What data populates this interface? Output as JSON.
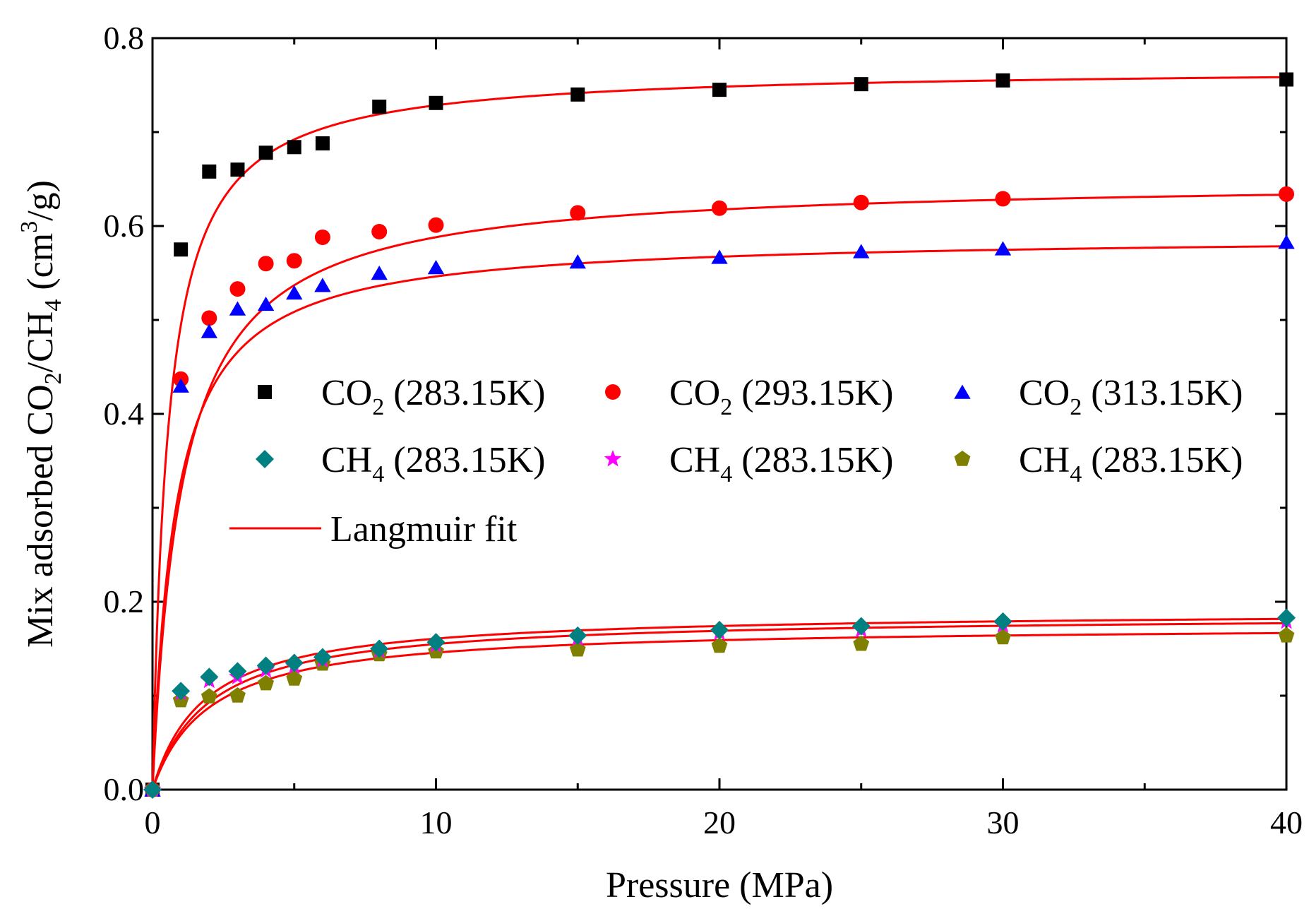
{
  "chart_data": {
    "type": "scatter",
    "title": "",
    "xlabel": "Pressure (MPa)",
    "ylabel": {
      "p1": "Mix adsorbed CO",
      "s1": "2",
      "p2": "/CH",
      "s2": "4",
      "p3": " (cm",
      "sup": "3",
      "p4": "/g)"
    },
    "xlim": [
      0,
      40
    ],
    "ylim": [
      0,
      0.8
    ],
    "x_ticks": [
      0,
      10,
      20,
      30,
      40
    ],
    "x_tick_labels": [
      "0",
      "10",
      "20",
      "30",
      "40"
    ],
    "y_ticks": [
      0.0,
      0.2,
      0.4,
      0.6,
      0.8
    ],
    "y_tick_labels": [
      "0.0",
      "0.2",
      "0.4",
      "0.6",
      "0.8"
    ],
    "x": [
      0,
      1,
      2,
      3,
      4,
      5,
      6,
      8,
      10,
      15,
      20,
      25,
      30,
      40
    ],
    "series": [
      {
        "name": "CO2 (283.15K)",
        "label": {
          "pre": "CO",
          "sub": "2",
          "post": " (283.15K)"
        },
        "marker": "square",
        "color": "#000000",
        "values": [
          0,
          0.575,
          0.658,
          0.66,
          0.678,
          0.684,
          0.688,
          0.727,
          0.731,
          0.74,
          0.745,
          0.751,
          0.755,
          0.756
        ]
      },
      {
        "name": "CO2 (293.15K)",
        "label": {
          "pre": "CO",
          "sub": "2",
          "post": " (293.15K)"
        },
        "marker": "circle",
        "color": "#ff0000",
        "values": [
          0,
          0.437,
          0.502,
          0.533,
          0.56,
          0.563,
          0.588,
          0.594,
          0.601,
          0.614,
          0.619,
          0.625,
          0.629,
          0.634
        ]
      },
      {
        "name": "CO2 (313.15K)",
        "label": {
          "pre": "CO",
          "sub": "2",
          "post": " (313.15K)"
        },
        "marker": "triangle",
        "color": "#0000ff",
        "values": [
          0,
          0.43,
          0.488,
          0.512,
          0.517,
          0.529,
          0.537,
          0.55,
          0.556,
          0.562,
          0.567,
          0.573,
          0.576,
          0.583
        ]
      },
      {
        "name": "CH4 (283.15K)",
        "label": {
          "pre": "CH",
          "sub": "4",
          "post": " (283.15K)"
        },
        "marker": "diamond",
        "color": "#008080",
        "values": [
          0,
          0.105,
          0.12,
          0.126,
          0.132,
          0.135,
          0.141,
          0.15,
          0.157,
          0.164,
          0.17,
          0.174,
          0.179,
          0.183
        ]
      },
      {
        "name": "CH4 (283.15K)",
        "label": {
          "pre": "CH",
          "sub": "4",
          "post": " (283.15K)"
        },
        "marker": "star",
        "color": "#ff00ff",
        "values": [
          0,
          0.103,
          0.116,
          0.12,
          0.127,
          0.131,
          0.138,
          0.148,
          0.154,
          0.161,
          0.167,
          0.17,
          0.175,
          0.179
        ]
      },
      {
        "name": "CH4 (283.15K)",
        "label": {
          "pre": "CH",
          "sub": "4",
          "post": " (283.15K)"
        },
        "marker": "pentagon",
        "color": "#808000",
        "values": [
          0,
          0.095,
          0.099,
          0.1,
          0.113,
          0.118,
          0.134,
          0.144,
          0.147,
          0.149,
          0.153,
          0.155,
          0.162,
          0.164
        ]
      }
    ],
    "fits": {
      "name": "Langmuir fit",
      "color": "#ff0000",
      "curves": [
        {
          "series": "CO2 (283.15K)",
          "qmax": 0.769,
          "b": 1.8
        },
        {
          "series": "CO2 (293.15K)",
          "qmax": 0.65,
          "b": 0.95
        },
        {
          "series": "CO2 (313.15K)",
          "qmax": 0.59,
          "b": 1.25
        },
        {
          "series": "CH4 (283.15K)",
          "qmax": 0.19,
          "b": 0.55
        },
        {
          "series": "CH4 (283.15K)",
          "qmax": 0.186,
          "b": 0.5
        },
        {
          "series": "CH4 (283.15K)",
          "qmax": 0.175,
          "b": 0.5
        }
      ]
    },
    "legend": {
      "position": "center",
      "columns": 3,
      "fit_label": "Langmuir fit"
    }
  }
}
